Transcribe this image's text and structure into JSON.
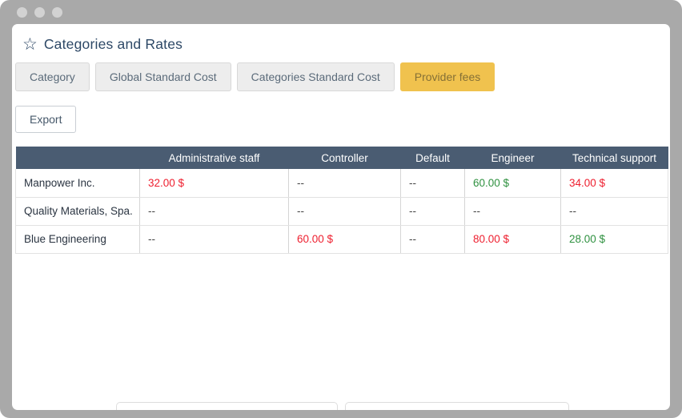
{
  "header": {
    "title": "Categories and Rates",
    "star_icon": "☆"
  },
  "tabs": [
    {
      "label": "Category",
      "active": false
    },
    {
      "label": "Global Standard Cost",
      "active": false
    },
    {
      "label": "Categories Standard Cost",
      "active": false
    },
    {
      "label": "Provider fees",
      "active": true
    }
  ],
  "toolbar": {
    "export_label": "Export"
  },
  "table": {
    "columns": [
      "",
      "Administrative staff",
      "Controller",
      "Default",
      "Engineer",
      "Technical support"
    ],
    "rows": [
      {
        "provider": "Manpower Inc.",
        "cells": [
          {
            "text": "32.00 $",
            "color": "red"
          },
          {
            "text": "--"
          },
          {
            "text": "--"
          },
          {
            "text": "60.00 $",
            "color": "green"
          },
          {
            "text": "34.00 $",
            "color": "red"
          }
        ]
      },
      {
        "provider": "Quality Materials, Spa.",
        "cells": [
          {
            "text": "--"
          },
          {
            "text": "--"
          },
          {
            "text": "--"
          },
          {
            "text": "--"
          },
          {
            "text": "--"
          }
        ]
      },
      {
        "provider": "Blue Engineering",
        "cells": [
          {
            "text": "--"
          },
          {
            "text": "60.00 $",
            "color": "red"
          },
          {
            "text": "--"
          },
          {
            "text": "80.00 $",
            "color": "red"
          },
          {
            "text": "28.00 $",
            "color": "green"
          }
        ]
      }
    ]
  },
  "colors": {
    "negative_value": "#ee1f2f",
    "positive_value": "#2f9140",
    "table_header_bg": "#4a5c72",
    "active_tab_bg": "#f0c24e",
    "active_tab_text": "#857036",
    "title_text": "#2d4866"
  }
}
